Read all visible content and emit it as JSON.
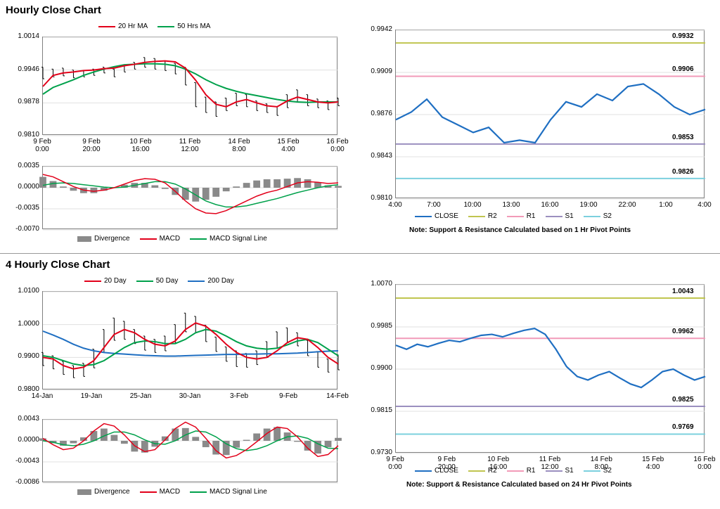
{
  "titles": {
    "hourly": "Hourly Close Chart",
    "fourHourly": "4 Hourly Close Chart"
  },
  "colors": {
    "red": "#e2001a",
    "green": "#00a14b",
    "blue": "#1f6fc2",
    "darkBlue": "#1a4f9c",
    "gray": "#8a8a8a",
    "olive": "#c0c54f",
    "pink": "#f29ab8",
    "violet": "#9b8fbf",
    "cyan": "#7cd0de",
    "axis": "#333333",
    "grid": "#d0d0d0",
    "candle": "#000000"
  },
  "hourly": {
    "price": {
      "ylim": [
        0.981,
        1.0014
      ],
      "yticks": [
        0.981,
        0.9878,
        0.9946,
        1.0014
      ],
      "xlabels": [
        "9 Feb 0:00",
        "9 Feb 20:00",
        "10 Feb 16:00",
        "11 Feb 12:00",
        "14 Feb 8:00",
        "15 Feb 4:00",
        "16 Feb 0:00"
      ],
      "legend": [
        {
          "label": "20 Hr MA",
          "color": "#e2001a",
          "type": "line"
        },
        {
          "label": "50 Hrs MA",
          "color": "#00a14b",
          "type": "line"
        }
      ],
      "ma20": [
        0.9912,
        0.9935,
        0.994,
        0.9942,
        0.9945,
        0.9946,
        0.9949,
        0.995,
        0.9955,
        0.9958,
        0.9962,
        0.9964,
        0.9965,
        0.9963,
        0.995,
        0.9925,
        0.9895,
        0.9875,
        0.987,
        0.988,
        0.9885,
        0.9878,
        0.9872,
        0.987,
        0.9882,
        0.989,
        0.9885,
        0.988,
        0.9878,
        0.988
      ],
      "ma50": [
        0.9896,
        0.991,
        0.9918,
        0.9926,
        0.9935,
        0.9942,
        0.9948,
        0.9953,
        0.9957,
        0.9958,
        0.9959,
        0.9959,
        0.9958,
        0.9955,
        0.9948,
        0.9938,
        0.9926,
        0.9916,
        0.9908,
        0.9902,
        0.9897,
        0.9893,
        0.9889,
        0.9885,
        0.9882,
        0.988,
        0.9879,
        0.988,
        0.988,
        0.988
      ],
      "candles": [
        [
          0.9952,
          0.9928
        ],
        [
          0.9948,
          0.9932
        ],
        [
          0.995,
          0.9934
        ],
        [
          0.9946,
          0.993
        ],
        [
          0.9944,
          0.9932
        ],
        [
          0.9948,
          0.9935
        ],
        [
          0.9952,
          0.994
        ],
        [
          0.9948,
          0.9932
        ],
        [
          0.9955,
          0.9942
        ],
        [
          0.9962,
          0.9948
        ],
        [
          0.9972,
          0.9952
        ],
        [
          0.997,
          0.9948
        ],
        [
          0.9965,
          0.9945
        ],
        [
          0.996,
          0.9938
        ],
        [
          0.9952,
          0.9915
        ],
        [
          0.992,
          0.987
        ],
        [
          0.989,
          0.9858
        ],
        [
          0.988,
          0.985
        ],
        [
          0.9888,
          0.9862
        ],
        [
          0.9898,
          0.9872
        ],
        [
          0.9895,
          0.987
        ],
        [
          0.9882,
          0.9862
        ],
        [
          0.9876,
          0.9858
        ],
        [
          0.987,
          0.9852
        ],
        [
          0.9895,
          0.9868
        ],
        [
          0.9905,
          0.988
        ],
        [
          0.9895,
          0.9872
        ],
        [
          0.9886,
          0.9868
        ],
        [
          0.9882,
          0.9864
        ],
        [
          0.9888,
          0.9872
        ]
      ]
    },
    "macd": {
      "ylim": [
        -0.007,
        0.0035
      ],
      "yticks": [
        -0.007,
        -0.0035,
        0.0,
        0.0035
      ],
      "legend": [
        {
          "label": "Divergence",
          "color": "#8a8a8a",
          "type": "bar"
        },
        {
          "label": "MACD",
          "color": "#e2001a",
          "type": "line"
        },
        {
          "label": "MACD Signal Line",
          "color": "#00a14b",
          "type": "line"
        }
      ],
      "macd": [
        0.0022,
        0.0018,
        0.001,
        0.0002,
        -0.0004,
        -0.0006,
        -0.0004,
        0.0,
        0.0006,
        0.0012,
        0.0015,
        0.0014,
        0.0008,
        -0.0006,
        -0.0022,
        -0.0035,
        -0.0042,
        -0.0043,
        -0.0038,
        -0.003,
        -0.0022,
        -0.0014,
        -0.0008,
        -0.0004,
        0.0002,
        0.0008,
        0.001,
        0.0009,
        0.0007,
        0.0008
      ],
      "signal": [
        0.0004,
        0.0007,
        0.0008,
        0.0007,
        0.0005,
        0.0003,
        0.0001,
        0.0,
        0.0001,
        0.0004,
        0.0007,
        0.001,
        0.001,
        0.0006,
        -0.0002,
        -0.0012,
        -0.0022,
        -0.0028,
        -0.0032,
        -0.0032,
        -0.003,
        -0.0026,
        -0.0022,
        -0.0018,
        -0.0013,
        -0.0008,
        -0.0004,
        0.0,
        0.0003,
        0.0005
      ],
      "hist": [
        0.0018,
        0.0011,
        0.0002,
        -0.0005,
        -0.0009,
        -0.0009,
        -0.0005,
        0.0,
        0.0005,
        0.0008,
        0.0008,
        0.0004,
        -0.0002,
        -0.0012,
        -0.002,
        -0.0023,
        -0.002,
        -0.0015,
        -0.0006,
        0.0002,
        0.0008,
        0.0012,
        0.0014,
        0.0014,
        0.0015,
        0.0016,
        0.0014,
        0.0009,
        0.0004,
        0.0003
      ]
    },
    "sr": {
      "ylim": [
        0.981,
        0.9942
      ],
      "yticks": [
        0.981,
        0.9843,
        0.9876,
        0.9909,
        0.9942
      ],
      "xlabels": [
        "4:00",
        "7:00",
        "10:00",
        "13:00",
        "16:00",
        "19:00",
        "22:00",
        "1:00",
        "4:00"
      ],
      "close": [
        0.9872,
        0.9878,
        0.9888,
        0.9874,
        0.9868,
        0.9862,
        0.9866,
        0.9854,
        0.9856,
        0.9854,
        0.9872,
        0.9886,
        0.9882,
        0.9892,
        0.9887,
        0.9898,
        0.99,
        0.9892,
        0.9882,
        0.9876,
        0.988
      ],
      "r2": {
        "val": 0.9932,
        "color": "#c0c54f"
      },
      "r1": {
        "val": 0.9906,
        "color": "#f29ab8"
      },
      "s1": {
        "val": 0.9853,
        "color": "#9b8fbf"
      },
      "s2": {
        "val": 0.9826,
        "color": "#7cd0de"
      },
      "legend": [
        {
          "label": "CLOSE",
          "color": "#1f6fc2",
          "type": "line"
        },
        {
          "label": "R2",
          "color": "#c0c54f",
          "type": "line"
        },
        {
          "label": "R1",
          "color": "#f29ab8",
          "type": "line"
        },
        {
          "label": "S1",
          "color": "#9b8fbf",
          "type": "line"
        },
        {
          "label": "S2",
          "color": "#7cd0de",
          "type": "line"
        }
      ],
      "note": "Note: Support & Resistance Calculated based on 1 Hr Pivot Points"
    }
  },
  "fourHourly": {
    "price": {
      "ylim": [
        0.98,
        1.01
      ],
      "yticks": [
        0.98,
        0.99,
        1.0,
        1.01
      ],
      "xlabels": [
        "14-Jan",
        "19-Jan",
        "25-Jan",
        "30-Jan",
        "3-Feb",
        "9-Feb",
        "14-Feb"
      ],
      "legend": [
        {
          "label": "20 Day",
          "color": "#e2001a",
          "type": "line"
        },
        {
          "label": "50 Day",
          "color": "#00a14b",
          "type": "line"
        },
        {
          "label": "200 Day",
          "color": "#1f6fc2",
          "type": "line"
        }
      ],
      "ma20": [
        0.99,
        0.9895,
        0.9875,
        0.9865,
        0.987,
        0.989,
        0.993,
        0.997,
        0.9985,
        0.9975,
        0.9955,
        0.994,
        0.9935,
        0.995,
        0.9985,
        1.0005,
        0.9995,
        0.997,
        0.994,
        0.9915,
        0.99,
        0.9895,
        0.99,
        0.992,
        0.9945,
        0.996,
        0.9955,
        0.993,
        0.99,
        0.988
      ],
      "ma50": [
        0.9905,
        0.99,
        0.989,
        0.988,
        0.9875,
        0.9878,
        0.989,
        0.991,
        0.993,
        0.9945,
        0.995,
        0.9948,
        0.9942,
        0.9942,
        0.9955,
        0.9975,
        0.9985,
        0.998,
        0.9965,
        0.9948,
        0.9935,
        0.9928,
        0.9925,
        0.9928,
        0.9938,
        0.995,
        0.9955,
        0.9945,
        0.9925,
        0.9905
      ],
      "ma200": [
        0.998,
        0.9968,
        0.9955,
        0.994,
        0.9928,
        0.992,
        0.9915,
        0.9912,
        0.991,
        0.9908,
        0.9906,
        0.9905,
        0.9904,
        0.9904,
        0.9905,
        0.9906,
        0.9907,
        0.9908,
        0.9909,
        0.9909,
        0.991,
        0.991,
        0.9911,
        0.9911,
        0.9912,
        0.9913,
        0.9915,
        0.9917,
        0.9919,
        0.992
      ],
      "candles": [
        [
          0.9915,
          0.9875
        ],
        [
          0.9905,
          0.9865
        ],
        [
          0.9888,
          0.9848
        ],
        [
          0.9875,
          0.9838
        ],
        [
          0.9882,
          0.9842
        ],
        [
          0.9925,
          0.9868
        ],
        [
          0.9985,
          0.9915
        ],
        [
          1.002,
          0.9952
        ],
        [
          1.001,
          0.9955
        ],
        [
          0.9985,
          0.9942
        ],
        [
          0.9965,
          0.9922
        ],
        [
          0.9955,
          0.9915
        ],
        [
          0.9965,
          0.992
        ],
        [
          1.0,
          0.9945
        ],
        [
          1.0035,
          0.9978
        ],
        [
          1.0025,
          0.9975
        ],
        [
          0.9998,
          0.9948
        ],
        [
          0.9962,
          0.9918
        ],
        [
          0.9932,
          0.9888
        ],
        [
          0.992,
          0.9872
        ],
        [
          0.9912,
          0.987
        ],
        [
          0.992,
          0.9878
        ],
        [
          0.9948,
          0.99
        ],
        [
          0.9978,
          0.9928
        ],
        [
          0.999,
          0.9945
        ],
        [
          0.9975,
          0.9935
        ],
        [
          0.9952,
          0.9905
        ],
        [
          0.9918,
          0.987
        ],
        [
          0.9895,
          0.9855
        ],
        [
          0.9908,
          0.9862
        ]
      ]
    },
    "macd": {
      "ylim": [
        -0.0086,
        0.0043
      ],
      "yticks": [
        -0.0086,
        -0.0043,
        0.0,
        0.0043
      ],
      "legend": [
        {
          "label": "Divergence",
          "color": "#8a8a8a",
          "type": "bar"
        },
        {
          "label": "MACD",
          "color": "#e2001a",
          "type": "line"
        },
        {
          "label": "MACD Signal Line",
          "color": "#00a14b",
          "type": "line"
        }
      ],
      "macd": [
        0.0005,
        -0.0008,
        -0.0018,
        -0.0015,
        0.0,
        0.002,
        0.0035,
        0.003,
        0.0012,
        -0.001,
        -0.0022,
        -0.0018,
        0.0002,
        0.0025,
        0.0038,
        0.0028,
        0.0005,
        -0.002,
        -0.0035,
        -0.003,
        -0.0018,
        -0.0002,
        0.0015,
        0.0028,
        0.0025,
        0.0008,
        -0.0015,
        -0.0032,
        -0.0028,
        -0.001
      ],
      "signal": [
        0.0,
        -0.0003,
        -0.0008,
        -0.001,
        -0.0007,
        0.0,
        0.001,
        0.0018,
        0.0018,
        0.0012,
        0.0002,
        -0.0006,
        -0.0007,
        0.0,
        0.0012,
        0.002,
        0.0018,
        0.0008,
        -0.0006,
        -0.0016,
        -0.002,
        -0.0017,
        -0.001,
        0.0,
        0.0008,
        0.001,
        0.0005,
        -0.0006,
        -0.0015,
        -0.0016
      ],
      "hist": [
        0.0005,
        -0.0005,
        -0.001,
        -0.0005,
        0.0007,
        0.002,
        0.0025,
        0.0012,
        -0.0006,
        -0.0022,
        -0.0024,
        -0.0012,
        0.0009,
        0.0025,
        0.0026,
        0.0008,
        -0.0013,
        -0.0028,
        -0.0029,
        -0.0014,
        0.0002,
        0.0015,
        0.0025,
        0.0028,
        0.0017,
        -0.0002,
        -0.002,
        -0.0026,
        -0.0013,
        0.0006
      ]
    },
    "sr": {
      "ylim": [
        0.973,
        1.007
      ],
      "yticks": [
        0.973,
        0.9815,
        0.99,
        0.9985,
        1.007
      ],
      "xlabels": [
        "9 Feb 0:00",
        "9 Feb 20:00",
        "10 Feb 16:00",
        "11 Feb 12:00",
        "14 Feb 8:00",
        "15 Feb 4:00",
        "16 Feb 0:00"
      ],
      "close": [
        0.9948,
        0.994,
        0.995,
        0.9945,
        0.9952,
        0.9958,
        0.9955,
        0.9962,
        0.9968,
        0.997,
        0.9965,
        0.9972,
        0.9978,
        0.9982,
        0.997,
        0.994,
        0.9905,
        0.9885,
        0.9878,
        0.9888,
        0.9895,
        0.9882,
        0.987,
        0.9863,
        0.9878,
        0.9895,
        0.99,
        0.9888,
        0.9878,
        0.9885
      ],
      "r2": {
        "val": 1.0043,
        "color": "#c0c54f"
      },
      "r1": {
        "val": 0.9962,
        "color": "#f29ab8"
      },
      "s1": {
        "val": 0.9825,
        "color": "#9b8fbf"
      },
      "s2": {
        "val": 0.9769,
        "color": "#7cd0de"
      },
      "legend": [
        {
          "label": "CLOSE",
          "color": "#1f6fc2",
          "type": "line"
        },
        {
          "label": "R2",
          "color": "#c0c54f",
          "type": "line"
        },
        {
          "label": "R1",
          "color": "#f29ab8",
          "type": "line"
        },
        {
          "label": "S1",
          "color": "#9b8fbf",
          "type": "line"
        },
        {
          "label": "S2",
          "color": "#7cd0de",
          "type": "line"
        }
      ],
      "note": "Note: Support & Resistance Calculated based on 24 Hr Pivot Points"
    }
  }
}
